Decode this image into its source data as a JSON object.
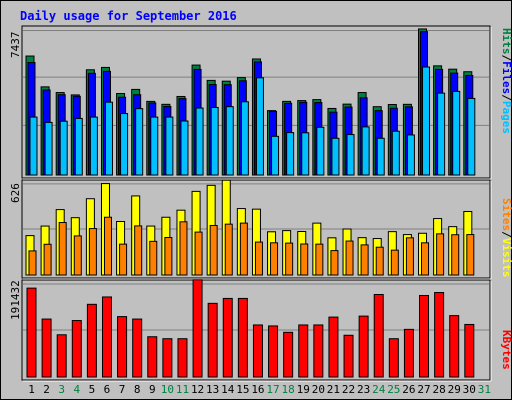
{
  "title": "Daily usage for September 2016",
  "colors": {
    "background": "#c0c0c0",
    "plot_bg": "#c0c0c0",
    "title": "#0000ff",
    "hits": "#008040",
    "files": "#0000ff",
    "pages": "#00c0ff",
    "visits": "#ffff00",
    "sites": "#ff8000",
    "kbytes": "#ff0000",
    "weekday_label": "#000000",
    "weekend_label": "#008040"
  },
  "chart_data": [
    {
      "type": "bar",
      "panel": "hits-files-pages",
      "ylabel_max": "7437",
      "ylim": [
        0,
        7437
      ],
      "grid": true,
      "legend": [
        {
          "name": "Hits",
          "color": "#008040"
        },
        {
          "name": "Files",
          "color": "#0000ff"
        },
        {
          "name": "Pages",
          "color": "#00c0ff"
        }
      ],
      "categories": [
        "1",
        "2",
        "3",
        "4",
        "5",
        "6",
        "7",
        "8",
        "9",
        "10",
        "11",
        "12",
        "13",
        "14",
        "15",
        "16",
        "17",
        "18",
        "19",
        "20",
        "21",
        "22",
        "23",
        "24",
        "25",
        "26",
        "27",
        "28",
        "29",
        "30"
      ],
      "series": [
        {
          "name": "Hits",
          "values": [
            6060,
            4490,
            4200,
            4080,
            5360,
            5480,
            4150,
            4360,
            3750,
            3600,
            4000,
            5600,
            4820,
            4780,
            4960,
            5910,
            3280,
            3750,
            3790,
            3840,
            3390,
            3610,
            4200,
            3480,
            3590,
            3600,
            7440,
            5560,
            5390,
            5260
          ]
        },
        {
          "name": "Files",
          "values": [
            5730,
            4330,
            4090,
            4010,
            5180,
            5280,
            3960,
            4090,
            3670,
            3490,
            3890,
            5380,
            4610,
            4600,
            4800,
            5760,
            3240,
            3650,
            3700,
            3690,
            3200,
            3460,
            3930,
            3280,
            3400,
            3470,
            7300,
            5380,
            5190,
            5070
          ]
        },
        {
          "name": "Pages",
          "values": [
            2950,
            2680,
            2740,
            2880,
            2950,
            3710,
            3130,
            3380,
            2950,
            2950,
            2750,
            3410,
            3440,
            3480,
            3730,
            4950,
            1970,
            2160,
            2150,
            2430,
            1870,
            2060,
            2450,
            1870,
            2230,
            2040,
            5500,
            4170,
            4260,
            3900
          ]
        }
      ]
    },
    {
      "type": "bar",
      "panel": "visits-sites",
      "ylabel_max": "626",
      "ylim": [
        0,
        626
      ],
      "grid": true,
      "legend": [
        {
          "name": "Visits",
          "color": "#ffff00"
        },
        {
          "name": "Sites",
          "color": "#ff8000"
        }
      ],
      "categories": [
        "1",
        "2",
        "3",
        "4",
        "5",
        "6",
        "7",
        "8",
        "9",
        "10",
        "11",
        "12",
        "13",
        "14",
        "15",
        "16",
        "17",
        "18",
        "19",
        "20",
        "21",
        "22",
        "23",
        "24",
        "25",
        "26",
        "27",
        "28",
        "29",
        "30"
      ],
      "series": [
        {
          "name": "Visits",
          "values": [
            268,
            333,
            445,
            390,
            519,
            622,
            364,
            538,
            333,
            393,
            441,
            569,
            610,
            645,
            452,
            448,
            294,
            302,
            296,
            353,
            253,
            313,
            254,
            248,
            295,
            275,
            284,
            384,
            329,
            432
          ]
        },
        {
          "name": "Sites",
          "values": [
            164,
            209,
            357,
            266,
            316,
            393,
            210,
            334,
            229,
            255,
            362,
            292,
            337,
            346,
            353,
            224,
            219,
            217,
            211,
            210,
            166,
            231,
            205,
            189,
            169,
            253,
            219,
            280,
            274,
            275
          ]
        }
      ]
    },
    {
      "type": "bar",
      "panel": "kbytes",
      "ylabel_max": "191432",
      "ylim": [
        0,
        191432
      ],
      "grid": true,
      "legend": [
        {
          "name": "KBytes",
          "color": "#ff0000"
        }
      ],
      "categories": [
        "1",
        "2",
        "3",
        "4",
        "5",
        "6",
        "7",
        "8",
        "9",
        "10",
        "11",
        "12",
        "13",
        "14",
        "15",
        "16",
        "17",
        "18",
        "19",
        "20",
        "21",
        "22",
        "23",
        "24",
        "25",
        "26",
        "27",
        "28",
        "29",
        "30"
      ],
      "series": [
        {
          "name": "KBytes",
          "values": [
            181000,
            118000,
            86000,
            115000,
            148000,
            163000,
            123000,
            118000,
            82000,
            78000,
            78000,
            198000,
            150000,
            160000,
            160000,
            106000,
            104000,
            91000,
            106000,
            106000,
            122000,
            85000,
            124000,
            168000,
            78000,
            97000,
            166000,
            172000,
            125000,
            107000
          ]
        }
      ]
    }
  ],
  "x_labels": [
    {
      "day": "1",
      "weekend": false
    },
    {
      "day": "2",
      "weekend": false
    },
    {
      "day": "3",
      "weekend": true
    },
    {
      "day": "4",
      "weekend": true
    },
    {
      "day": "5",
      "weekend": false
    },
    {
      "day": "6",
      "weekend": false
    },
    {
      "day": "7",
      "weekend": false
    },
    {
      "day": "8",
      "weekend": false
    },
    {
      "day": "9",
      "weekend": false
    },
    {
      "day": "10",
      "weekend": true
    },
    {
      "day": "11",
      "weekend": true
    },
    {
      "day": "12",
      "weekend": false
    },
    {
      "day": "13",
      "weekend": false
    },
    {
      "day": "14",
      "weekend": false
    },
    {
      "day": "15",
      "weekend": false
    },
    {
      "day": "16",
      "weekend": false
    },
    {
      "day": "17",
      "weekend": true
    },
    {
      "day": "18",
      "weekend": true
    },
    {
      "day": "19",
      "weekend": false
    },
    {
      "day": "20",
      "weekend": false
    },
    {
      "day": "21",
      "weekend": false
    },
    {
      "day": "22",
      "weekend": false
    },
    {
      "day": "23",
      "weekend": false
    },
    {
      "day": "24",
      "weekend": true
    },
    {
      "day": "25",
      "weekend": true
    },
    {
      "day": "26",
      "weekend": false
    },
    {
      "day": "27",
      "weekend": false
    },
    {
      "day": "28",
      "weekend": false
    },
    {
      "day": "29",
      "weekend": false
    },
    {
      "day": "30",
      "weekend": false
    },
    {
      "day": "31",
      "weekend": true
    }
  ]
}
